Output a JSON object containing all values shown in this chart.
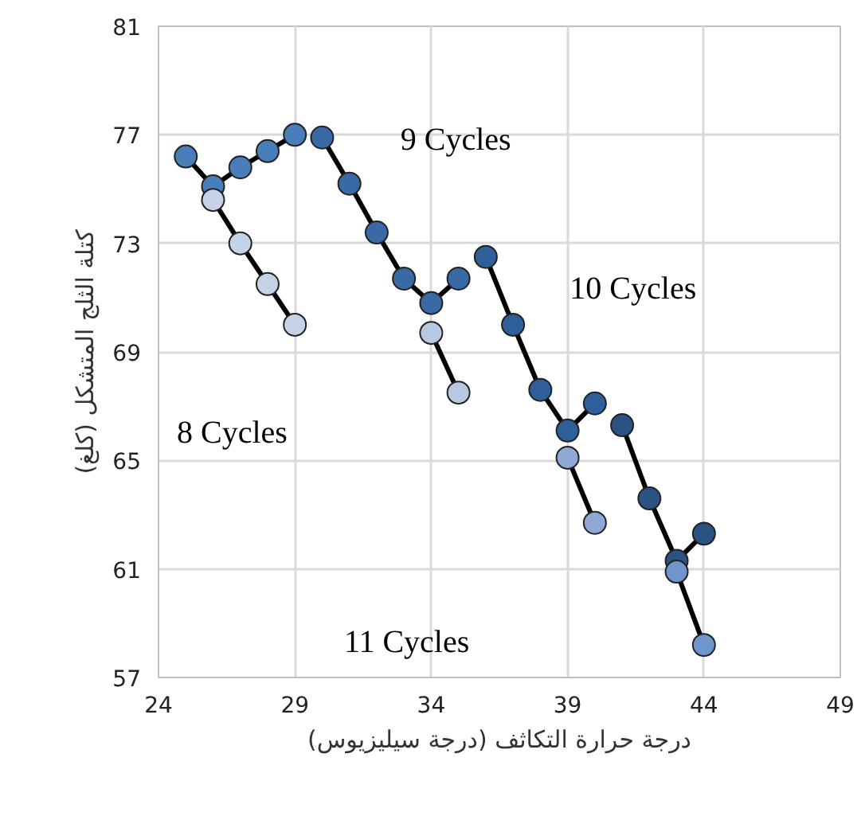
{
  "chart_data": {
    "type": "line",
    "xlabel": "درجة حرارة التكاثف (درجة سيليزيوس)",
    "ylabel": "كتلة الثلج المتشكل (كلغ)",
    "xlim": [
      24,
      49
    ],
    "xticks": [
      24,
      29,
      34,
      39,
      44,
      49
    ],
    "ylim": [
      57,
      81
    ],
    "yticks": [
      57,
      61,
      65,
      69,
      73,
      77,
      81
    ],
    "grid": true,
    "marker": "circle",
    "line_style": "solid",
    "series": [
      {
        "color": "#4a7ebb",
        "x": [
          25,
          26,
          27,
          28,
          29
        ],
        "values": [
          76.2,
          75.1,
          75.8,
          76.4,
          77.0
        ]
      },
      {
        "color": "#c5d3e8",
        "x": [
          26,
          27,
          28,
          29
        ],
        "values": [
          74.6,
          73.0,
          71.5,
          70.0
        ]
      },
      {
        "color": "#3a6aa5",
        "x": [
          30,
          31,
          32,
          33,
          34,
          35
        ],
        "values": [
          76.9,
          75.2,
          73.4,
          71.7,
          70.8,
          71.7
        ]
      },
      {
        "color": "#b7c9e2",
        "x": [
          34,
          35
        ],
        "values": [
          69.7,
          67.5
        ]
      },
      {
        "color": "#2f5f98",
        "x": [
          36,
          37,
          38,
          39,
          40
        ],
        "values": [
          72.5,
          70.0,
          67.6,
          66.1,
          67.1
        ]
      },
      {
        "color": "#8fa9d4",
        "x": [
          39,
          40
        ],
        "values": [
          65.1,
          62.7
        ]
      },
      {
        "color": "#2a5283",
        "x": [
          41,
          42,
          43,
          44
        ],
        "values": [
          66.3,
          63.6,
          61.3,
          62.3
        ]
      },
      {
        "color": "#6f95cc",
        "x": [
          43,
          44
        ],
        "values": [
          60.9,
          58.2
        ]
      }
    ],
    "annotations": [
      "9 Cycles",
      "10 Cycles",
      "8 Cycles",
      "11 Cycles"
    ]
  }
}
